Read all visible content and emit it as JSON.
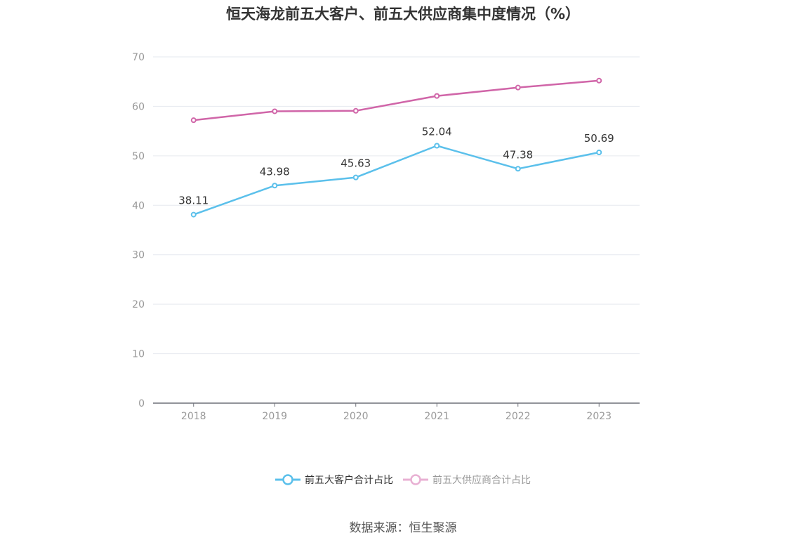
{
  "chart_data": {
    "type": "line",
    "title": "恒天海龙前五大客户、前五大供应商集中度情况（%）",
    "categories": [
      "2018",
      "2019",
      "2020",
      "2021",
      "2022",
      "2023"
    ],
    "series": [
      {
        "name": "前五大客户合计占比",
        "values": [
          38.11,
          43.98,
          45.63,
          52.04,
          47.38,
          50.69
        ],
        "color": "#5bc0eb",
        "show_labels": true
      },
      {
        "name": "前五大供应商合计占比",
        "values": [
          57.2,
          59.0,
          59.1,
          62.1,
          63.8,
          65.2
        ],
        "color": "#d065a8",
        "show_labels": false
      }
    ],
    "ylim": [
      0,
      70
    ],
    "yticks": [
      "0",
      "10",
      "20",
      "30",
      "40",
      "50",
      "60",
      "70"
    ],
    "grid": true,
    "legend_position": "bottom-center",
    "source": "数据来源：恒生聚源"
  }
}
